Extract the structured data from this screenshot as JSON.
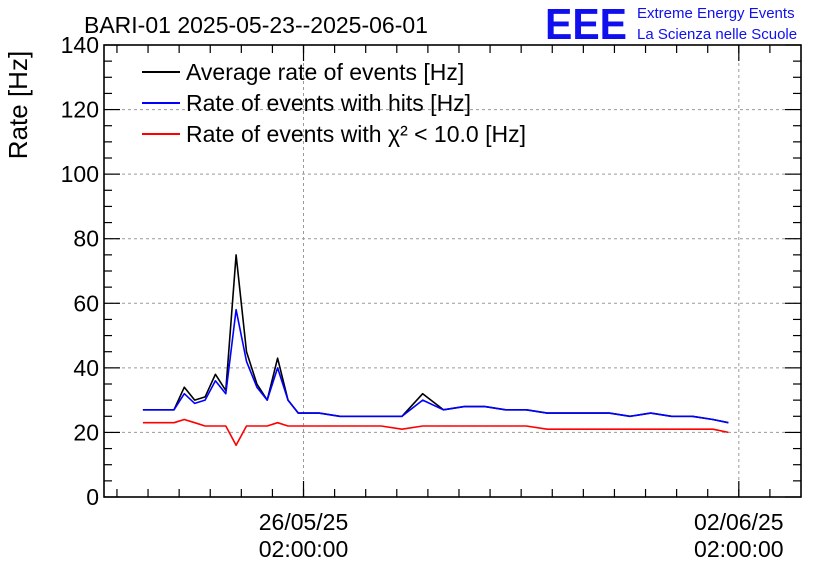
{
  "chart_data": {
    "type": "line",
    "title": "BARI-01 2025-05-23--2025-06-01",
    "ylabel": "Rate [Hz]",
    "xlabel": "",
    "ylim": [
      0,
      140
    ],
    "yticks": [
      0,
      20,
      40,
      60,
      80,
      100,
      120,
      140
    ],
    "xlim": [
      "2025-05-22 21:00",
      "2025-06-03 02:00"
    ],
    "xticks": [
      {
        "value": "2025-05-26 02:00",
        "label_date": "26/05/25",
        "label_time": "02:00:00"
      },
      {
        "value": "2025-06-02 02:00",
        "label_date": "02/06/25",
        "label_time": "02:00:00"
      }
    ],
    "grid": true,
    "legend_position": "top-left",
    "x": [
      "2025-05-23 12:00",
      "2025-05-23 20:00",
      "2025-05-24 00:00",
      "2025-05-24 04:00",
      "2025-05-24 08:00",
      "2025-05-24 12:00",
      "2025-05-24 16:00",
      "2025-05-24 20:00",
      "2025-05-25 00:00",
      "2025-05-25 04:00",
      "2025-05-25 08:00",
      "2025-05-25 12:00",
      "2025-05-25 16:00",
      "2025-05-25 20:00",
      "2025-05-26 00:00",
      "2025-05-26 08:00",
      "2025-05-26 16:00",
      "2025-05-27 00:00",
      "2025-05-27 08:00",
      "2025-05-27 16:00",
      "2025-05-28 00:00",
      "2025-05-28 08:00",
      "2025-05-28 16:00",
      "2025-05-29 00:00",
      "2025-05-29 08:00",
      "2025-05-29 16:00",
      "2025-05-30 00:00",
      "2025-05-30 08:00",
      "2025-05-30 16:00",
      "2025-05-31 00:00",
      "2025-05-31 08:00",
      "2025-05-31 16:00",
      "2025-06-01 00:00",
      "2025-06-01 08:00",
      "2025-06-01 16:00",
      "2025-06-01 22:00"
    ],
    "series": [
      {
        "name": "Average rate of events [Hz]",
        "color": "#000000",
        "values": [
          27,
          27,
          27,
          34,
          30,
          31,
          38,
          33,
          75,
          45,
          35,
          30,
          43,
          30,
          26,
          26,
          25,
          25,
          25,
          25,
          32,
          27,
          28,
          28,
          27,
          27,
          26,
          26,
          26,
          26,
          25,
          26,
          25,
          25,
          24,
          23
        ]
      },
      {
        "name": "Rate of events with hits [Hz]",
        "color": "#0000ff",
        "values": [
          27,
          27,
          27,
          32,
          29,
          30,
          36,
          32,
          58,
          42,
          34,
          30,
          40,
          30,
          26,
          26,
          25,
          25,
          25,
          25,
          30,
          27,
          28,
          28,
          27,
          27,
          26,
          26,
          26,
          26,
          25,
          26,
          25,
          25,
          24,
          23
        ]
      },
      {
        "name": "Rate of events with χ² < 10.0 [Hz]",
        "color": "#ff0000",
        "values": [
          23,
          23,
          23,
          24,
          23,
          22,
          22,
          22,
          16,
          22,
          22,
          22,
          23,
          22,
          22,
          22,
          22,
          22,
          22,
          21,
          22,
          22,
          22,
          22,
          22,
          22,
          21,
          21,
          21,
          21,
          21,
          21,
          21,
          21,
          21,
          20
        ]
      }
    ]
  },
  "logo": {
    "text": "EEE",
    "line1": "Extreme Energy Events",
    "line2": "La Scienza nelle Scuole",
    "color": "#1010ee"
  }
}
